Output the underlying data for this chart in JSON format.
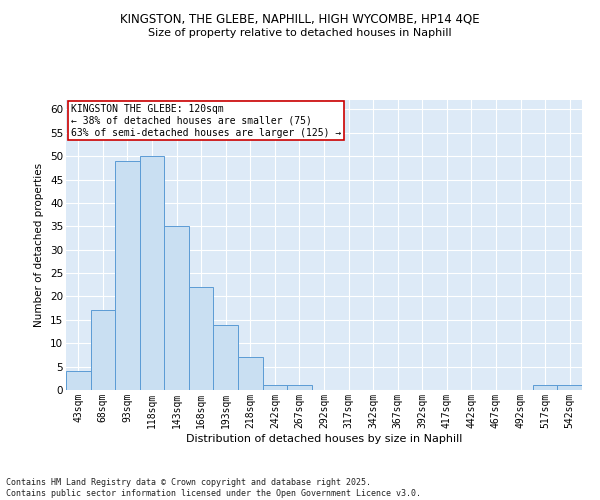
{
  "title1": "KINGSTON, THE GLEBE, NAPHILL, HIGH WYCOMBE, HP14 4QE",
  "title2": "Size of property relative to detached houses in Naphill",
  "xlabel": "Distribution of detached houses by size in Naphill",
  "ylabel": "Number of detached properties",
  "bar_labels": [
    "43sqm",
    "68sqm",
    "93sqm",
    "118sqm",
    "143sqm",
    "168sqm",
    "193sqm",
    "218sqm",
    "242sqm",
    "267sqm",
    "292sqm",
    "317sqm",
    "342sqm",
    "367sqm",
    "392sqm",
    "417sqm",
    "442sqm",
    "467sqm",
    "492sqm",
    "517sqm",
    "542sqm"
  ],
  "bar_values": [
    4,
    17,
    49,
    50,
    35,
    22,
    14,
    7,
    1,
    1,
    0,
    0,
    0,
    0,
    0,
    0,
    0,
    0,
    0,
    1,
    1
  ],
  "bar_color": "#c9dff2",
  "bar_edge_color": "#5b9bd5",
  "ylim": [
    0,
    62
  ],
  "yticks": [
    0,
    5,
    10,
    15,
    20,
    25,
    30,
    35,
    40,
    45,
    50,
    55,
    60
  ],
  "annotation_line1": "KINGSTON THE GLEBE: 120sqm",
  "annotation_line2": "← 38% of detached houses are smaller (75)",
  "annotation_line3": "63% of semi-detached houses are larger (125) →",
  "annotation_box_color": "#ffffff",
  "annotation_box_edge_color": "#cc0000",
  "footer_text": "Contains HM Land Registry data © Crown copyright and database right 2025.\nContains public sector information licensed under the Open Government Licence v3.0.",
  "background_color": "#ddeaf7",
  "grid_color": "#ffffff",
  "fig_background": "#ffffff"
}
